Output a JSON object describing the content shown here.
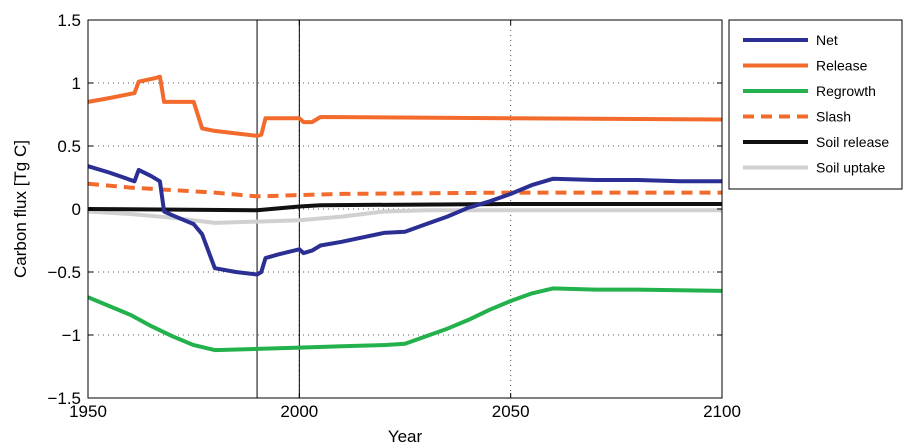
{
  "chart_data": {
    "type": "line",
    "title": "",
    "xlabel": "Year",
    "ylabel": "Carbon flux [Tg C]",
    "xlim": [
      1950,
      2100
    ],
    "ylim": [
      -1.5,
      1.5
    ],
    "x_ticks": [
      1950,
      2000,
      2050,
      2100
    ],
    "x_tick_labels": [
      "1950",
      "2000",
      "2050",
      "2100"
    ],
    "y_ticks": [
      -1.5,
      -1,
      -0.5,
      0,
      0.5,
      1,
      1.5
    ],
    "y_tick_labels": [
      "−1.5",
      "−1",
      "−0.5",
      "0",
      "0.5",
      "1",
      "1.5"
    ],
    "grid": "dotted",
    "legend_position": "outside-right-top",
    "vertical_lines": [
      1990,
      2000
    ],
    "series": [
      {
        "name": "Net",
        "color": "#2b2f94",
        "style": "solid",
        "x": [
          1950,
          1955,
          1961,
          1962,
          1965,
          1967,
          1968,
          1970,
          1975,
          1977,
          1980,
          1985,
          1990,
          1991,
          1992,
          1995,
          2000,
          2001,
          2003,
          2005,
          2010,
          2020,
          2025,
          2030,
          2035,
          2040,
          2045,
          2050,
          2055,
          2060,
          2070,
          2080,
          2090,
          2100
        ],
        "y": [
          0.34,
          0.29,
          0.22,
          0.31,
          0.26,
          0.22,
          -0.02,
          -0.05,
          -0.12,
          -0.2,
          -0.47,
          -0.5,
          -0.52,
          -0.5,
          -0.39,
          -0.36,
          -0.32,
          -0.35,
          -0.33,
          -0.29,
          -0.26,
          -0.19,
          -0.18,
          -0.12,
          -0.06,
          0.01,
          0.06,
          0.12,
          0.19,
          0.24,
          0.23,
          0.23,
          0.22,
          0.22
        ]
      },
      {
        "name": "Release",
        "color": "#f26b2d",
        "style": "solid",
        "x": [
          1950,
          1955,
          1961,
          1962,
          1966,
          1967,
          1968,
          1975,
          1977,
          1980,
          1985,
          1990,
          1991,
          1992,
          1995,
          2000,
          2001,
          2003,
          2005,
          2050,
          2100
        ],
        "y": [
          0.85,
          0.88,
          0.92,
          1.01,
          1.04,
          1.05,
          0.85,
          0.85,
          0.64,
          0.62,
          0.6,
          0.58,
          0.59,
          0.72,
          0.72,
          0.72,
          0.69,
          0.69,
          0.73,
          0.72,
          0.71
        ]
      },
      {
        "name": "Regrowth",
        "color": "#22b14c",
        "style": "solid",
        "x": [
          1950,
          1955,
          1960,
          1965,
          1970,
          1975,
          1980,
          1990,
          2000,
          2010,
          2020,
          2025,
          2030,
          2035,
          2040,
          2045,
          2050,
          2055,
          2060,
          2070,
          2080,
          2100
        ],
        "y": [
          -0.7,
          -0.77,
          -0.84,
          -0.93,
          -1.01,
          -1.08,
          -1.12,
          -1.11,
          -1.1,
          -1.09,
          -1.08,
          -1.07,
          -1.01,
          -0.95,
          -0.88,
          -0.8,
          -0.73,
          -0.67,
          -0.63,
          -0.64,
          -0.64,
          -0.65
        ]
      },
      {
        "name": "Slash",
        "color": "#f26b2d",
        "style": "dashed",
        "x": [
          1950,
          1960,
          1970,
          1980,
          1990,
          2000,
          2010,
          2050,
          2100
        ],
        "y": [
          0.2,
          0.17,
          0.15,
          0.13,
          0.1,
          0.11,
          0.12,
          0.13,
          0.13
        ]
      },
      {
        "name": "Soil release",
        "color": "#111111",
        "style": "solid",
        "x": [
          1950,
          1990,
          2000,
          2005,
          2050,
          2100
        ],
        "y": [
          0.0,
          -0.01,
          0.02,
          0.03,
          0.04,
          0.04
        ]
      },
      {
        "name": "Soil uptake",
        "color": "#d0d0d0",
        "style": "solid",
        "x": [
          1950,
          1960,
          1970,
          1980,
          1990,
          2000,
          2010,
          2020,
          2030,
          2100
        ],
        "y": [
          -0.02,
          -0.04,
          -0.07,
          -0.11,
          -0.1,
          -0.09,
          -0.06,
          -0.02,
          -0.01,
          -0.01
        ]
      }
    ]
  }
}
